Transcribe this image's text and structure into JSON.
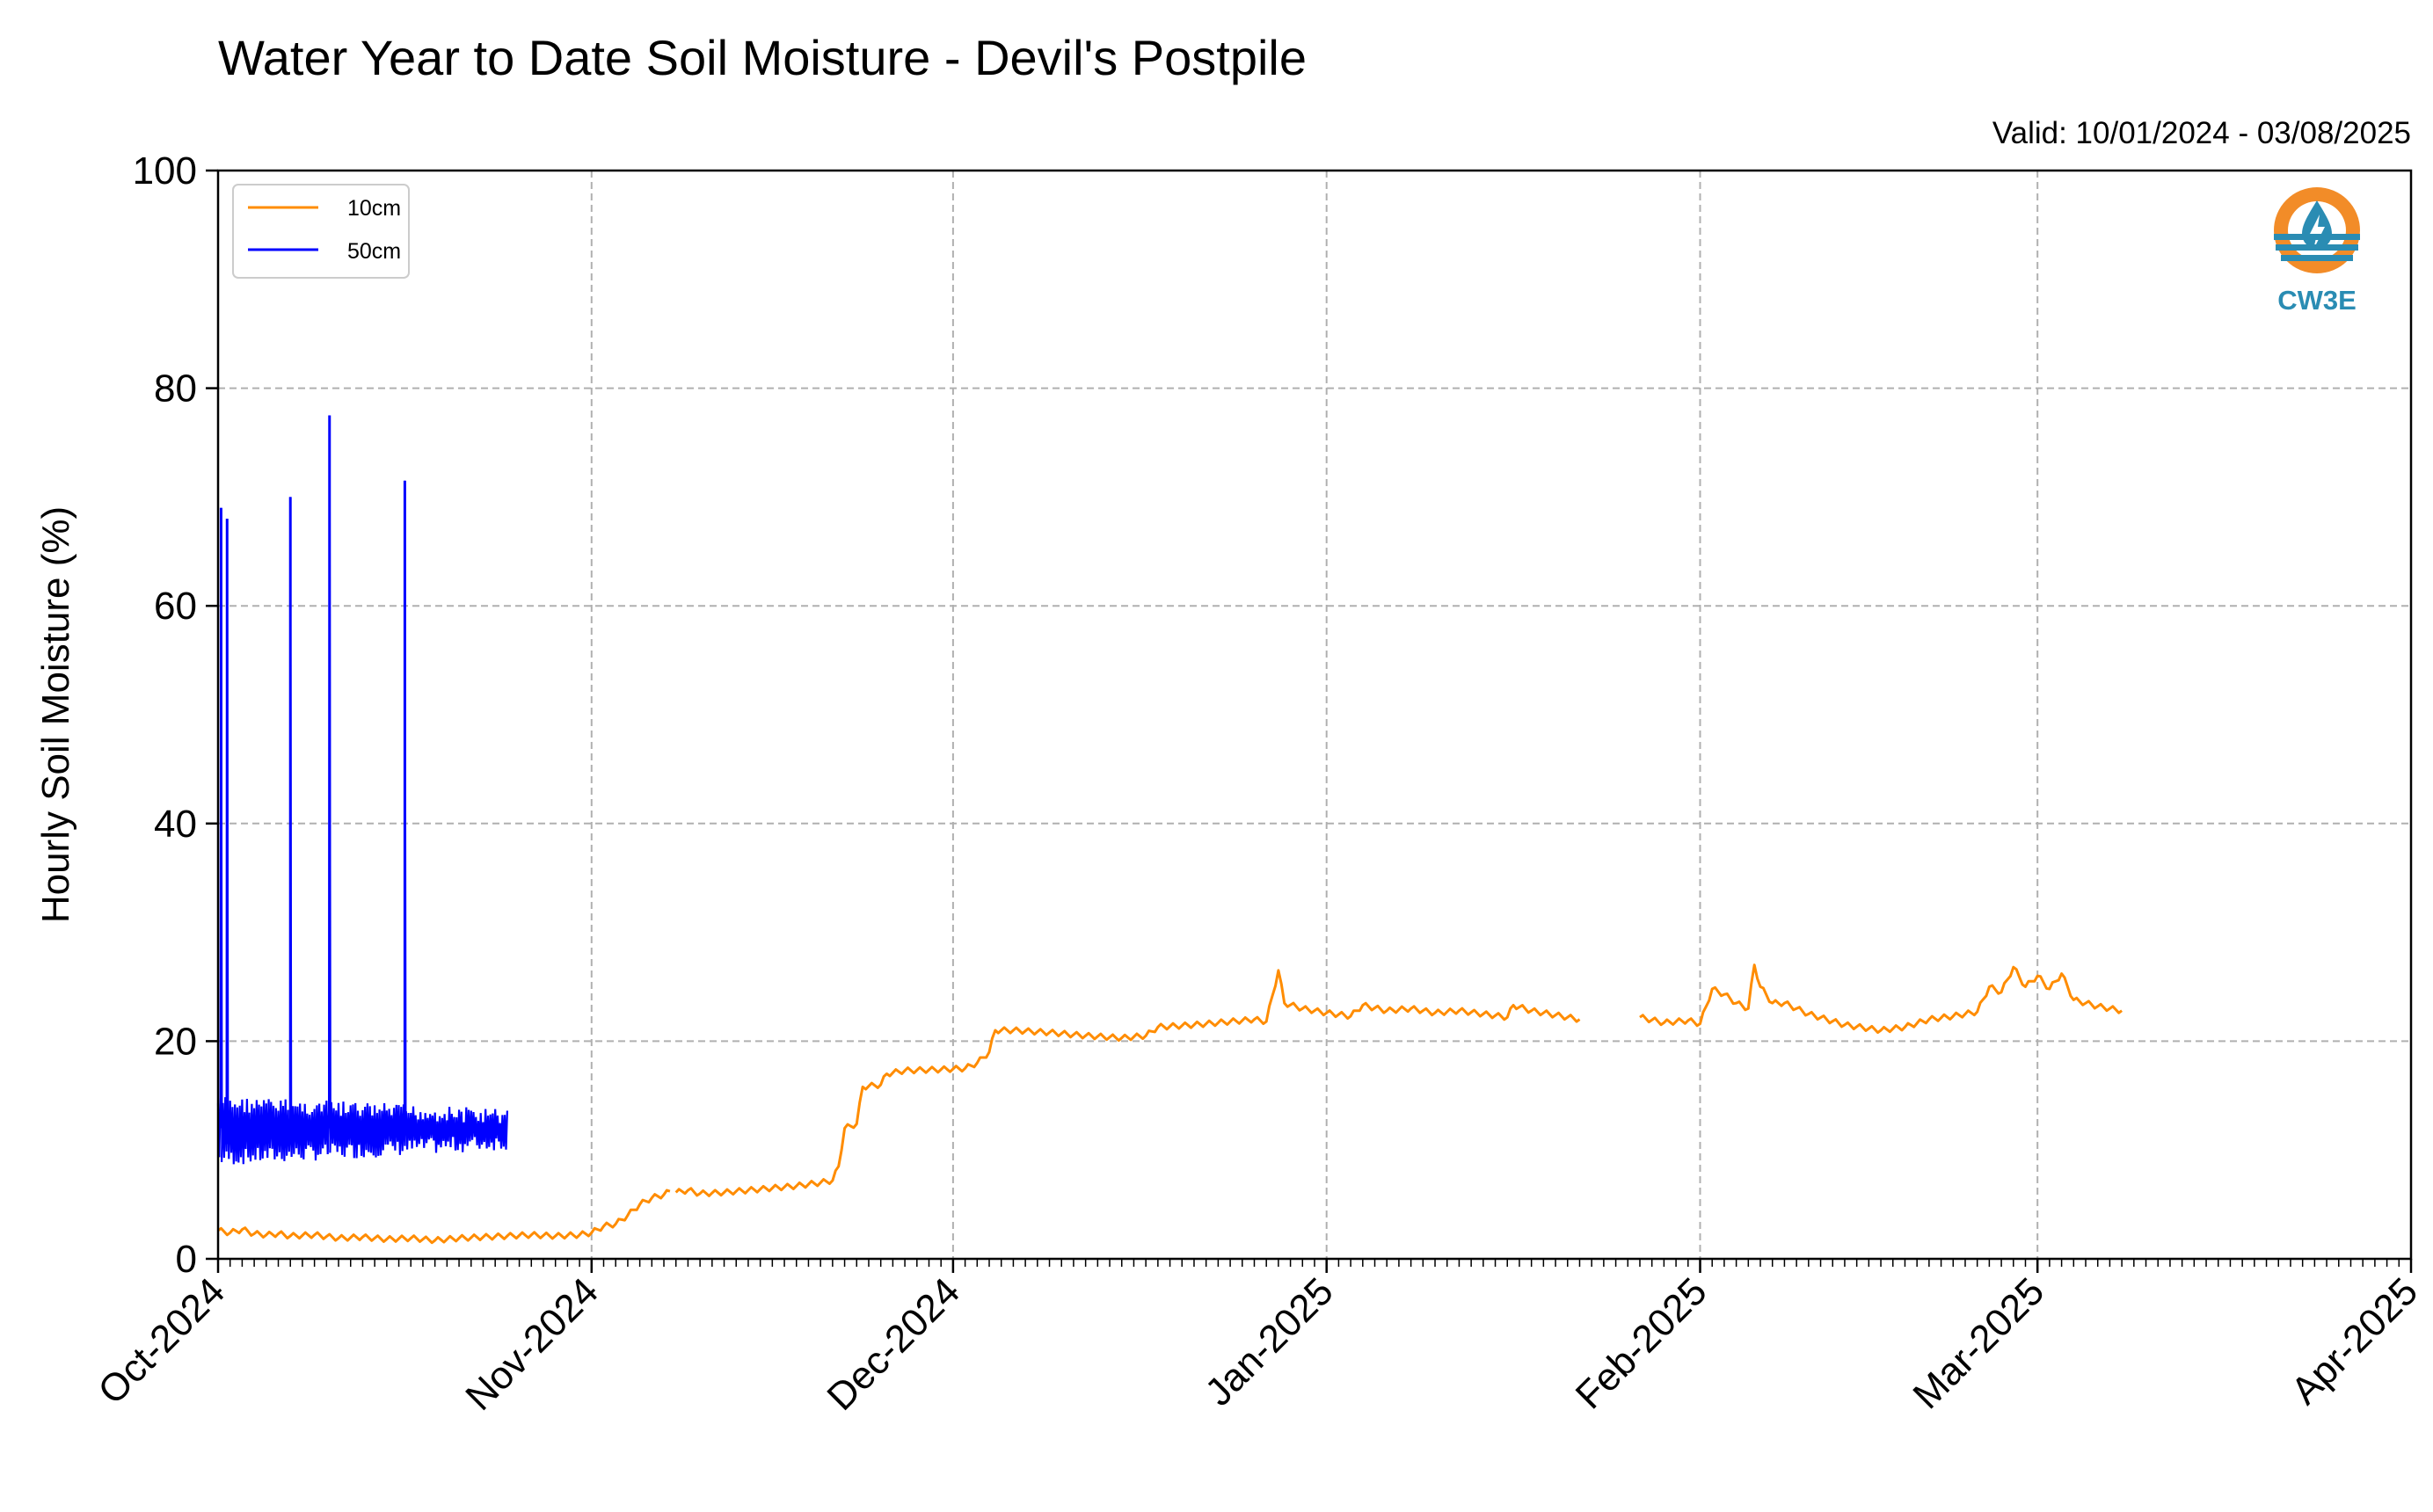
{
  "chart_data": {
    "type": "line",
    "title": "Water Year to Date Soil Moisture - Devil's Postpile",
    "subtitle": "Valid: 10/01/2024 - 03/08/2025",
    "xlabel": "",
    "ylabel": "Hourly Soil Moisture (%)",
    "ylim": [
      0,
      100
    ],
    "xlim": [
      "2024-10-01",
      "2025-04-01"
    ],
    "yticks": [
      "0",
      "20",
      "40",
      "60",
      "80",
      "100"
    ],
    "xticks": [
      "Oct-2024",
      "Nov-2024",
      "Dec-2024",
      "Jan-2025",
      "Feb-2025",
      "Mar-2025",
      "Apr-2025"
    ],
    "grid": true,
    "legend_position": "top-left",
    "series": [
      {
        "name": "10cm",
        "color": "#ff8c00",
        "segments": [
          [
            [
              "2024-10-01",
              2.6
            ],
            [
              "2024-10-02",
              2.4
            ],
            [
              "2024-10-03",
              2.7
            ],
            [
              "2024-10-04",
              2.3
            ],
            [
              "2024-10-05",
              2.2
            ],
            [
              "2024-10-06",
              2.3
            ],
            [
              "2024-10-07",
              2.1
            ],
            [
              "2024-10-09",
              2.2
            ],
            [
              "2024-10-11",
              1.9
            ],
            [
              "2024-10-13",
              2.0
            ],
            [
              "2024-10-15",
              1.8
            ],
            [
              "2024-10-17",
              1.9
            ],
            [
              "2024-10-19",
              1.7
            ],
            [
              "2024-10-21",
              1.9
            ],
            [
              "2024-10-23",
              2.0
            ],
            [
              "2024-10-25",
              2.1
            ],
            [
              "2024-10-27",
              2.2
            ],
            [
              "2024-10-29",
              2.1
            ],
            [
              "2024-10-31",
              2.2
            ],
            [
              "2024-11-01",
              2.4
            ],
            [
              "2024-11-02",
              3.0
            ],
            [
              "2024-11-03",
              3.2
            ],
            [
              "2024-11-04",
              4.0
            ],
            [
              "2024-11-05",
              5.0
            ],
            [
              "2024-11-06",
              5.6
            ],
            [
              "2024-11-07",
              5.9
            ],
            [
              "2024-11-07T12",
              6.2
            ]
          ],
          [
            [
              "2024-11-08",
              6.1
            ],
            [
              "2024-11-09",
              6.3
            ],
            [
              "2024-11-10",
              6.0
            ],
            [
              "2024-11-12",
              6.1
            ],
            [
              "2024-11-14",
              6.3
            ],
            [
              "2024-11-16",
              6.5
            ],
            [
              "2024-11-18",
              6.7
            ],
            [
              "2024-11-20",
              7.0
            ],
            [
              "2024-11-21",
              7.2
            ],
            [
              "2024-11-21T12",
              8.5
            ],
            [
              "2024-11-22",
              12.0
            ],
            [
              "2024-11-23",
              12.4
            ],
            [
              "2024-11-23T12",
              15.8
            ],
            [
              "2024-11-25",
              16.0
            ],
            [
              "2024-11-25T12",
              17.0
            ],
            [
              "2024-11-27",
              17.3
            ],
            [
              "2024-11-30",
              17.4
            ],
            [
              "2024-12-02",
              17.5
            ],
            [
              "2024-12-03",
              18.0
            ],
            [
              "2024-12-04",
              19.0
            ],
            [
              "2024-12-04T12",
              21.0
            ],
            [
              "2024-12-06",
              21.0
            ],
            [
              "2024-12-09",
              20.8
            ],
            [
              "2024-12-12",
              20.5
            ],
            [
              "2024-12-15",
              20.3
            ],
            [
              "2024-12-17",
              20.5
            ],
            [
              "2024-12-18",
              21.3
            ],
            [
              "2024-12-21",
              21.5
            ],
            [
              "2024-12-24",
              21.8
            ],
            [
              "2024-12-26",
              22.0
            ],
            [
              "2024-12-27",
              21.8
            ],
            [
              "2024-12-28",
              26.5
            ],
            [
              "2024-12-28T12",
              23.5
            ],
            [
              "2024-12-30",
              23.0
            ],
            [
              "2025-01-01",
              22.6
            ],
            [
              "2025-01-03",
              22.3
            ],
            [
              "2025-01-04",
              23.3
            ],
            [
              "2025-01-06",
              22.8
            ],
            [
              "2025-01-08",
              23.0
            ],
            [
              "2025-01-10",
              22.6
            ],
            [
              "2025-01-12",
              22.8
            ],
            [
              "2025-01-14",
              22.5
            ],
            [
              "2025-01-16",
              22.2
            ],
            [
              "2025-01-16T12",
              23.3
            ],
            [
              "2025-01-18",
              22.8
            ],
            [
              "2025-01-20",
              22.4
            ],
            [
              "2025-01-22",
              22.0
            ]
          ],
          [
            [
              "2025-01-27",
              22.2
            ],
            [
              "2025-01-29",
              21.7
            ],
            [
              "2025-01-31",
              21.9
            ],
            [
              "2025-02-01",
              21.6
            ],
            [
              "2025-02-02",
              24.8
            ],
            [
              "2025-02-03",
              24.3
            ],
            [
              "2025-02-04",
              23.5
            ],
            [
              "2025-02-05",
              23.0
            ],
            [
              "2025-02-05T12",
              27.0
            ],
            [
              "2025-02-06",
              25.0
            ],
            [
              "2025-02-07",
              23.5
            ],
            [
              "2025-02-08",
              23.5
            ],
            [
              "2025-02-10",
              22.5
            ],
            [
              "2025-02-13",
              21.5
            ],
            [
              "2025-02-16",
              21.0
            ],
            [
              "2025-02-18",
              21.3
            ],
            [
              "2025-02-20",
              22.0
            ],
            [
              "2025-02-22",
              22.3
            ],
            [
              "2025-02-24",
              22.7
            ],
            [
              "2025-02-25",
              25.0
            ],
            [
              "2025-02-26",
              24.5
            ],
            [
              "2025-02-27",
              26.8
            ],
            [
              "2025-02-28",
              25.0
            ],
            [
              "2025-03-01",
              26.0
            ],
            [
              "2025-03-02",
              24.8
            ],
            [
              "2025-03-03",
              26.2
            ],
            [
              "2025-03-04",
              23.8
            ],
            [
              "2025-03-05",
              23.5
            ],
            [
              "2025-03-06",
              23.2
            ],
            [
              "2025-03-08",
              22.8
            ]
          ]
        ]
      },
      {
        "name": "50cm",
        "color": "#0000ff",
        "range": [
          "2024-10-01",
          "2024-10-25"
        ],
        "band": [
          8.5,
          15.0
        ],
        "spikes": [
          [
            "2024-10-01T06",
            69.0
          ],
          [
            "2024-10-01T18",
            68.0
          ],
          [
            "2024-10-07",
            70.0
          ],
          [
            "2024-10-10T06",
            77.5
          ],
          [
            "2024-10-16T12",
            71.5
          ]
        ]
      }
    ]
  },
  "logo": {
    "text": "CW3E",
    "orange": "#f28c28",
    "teal": "#2a8cb3"
  }
}
